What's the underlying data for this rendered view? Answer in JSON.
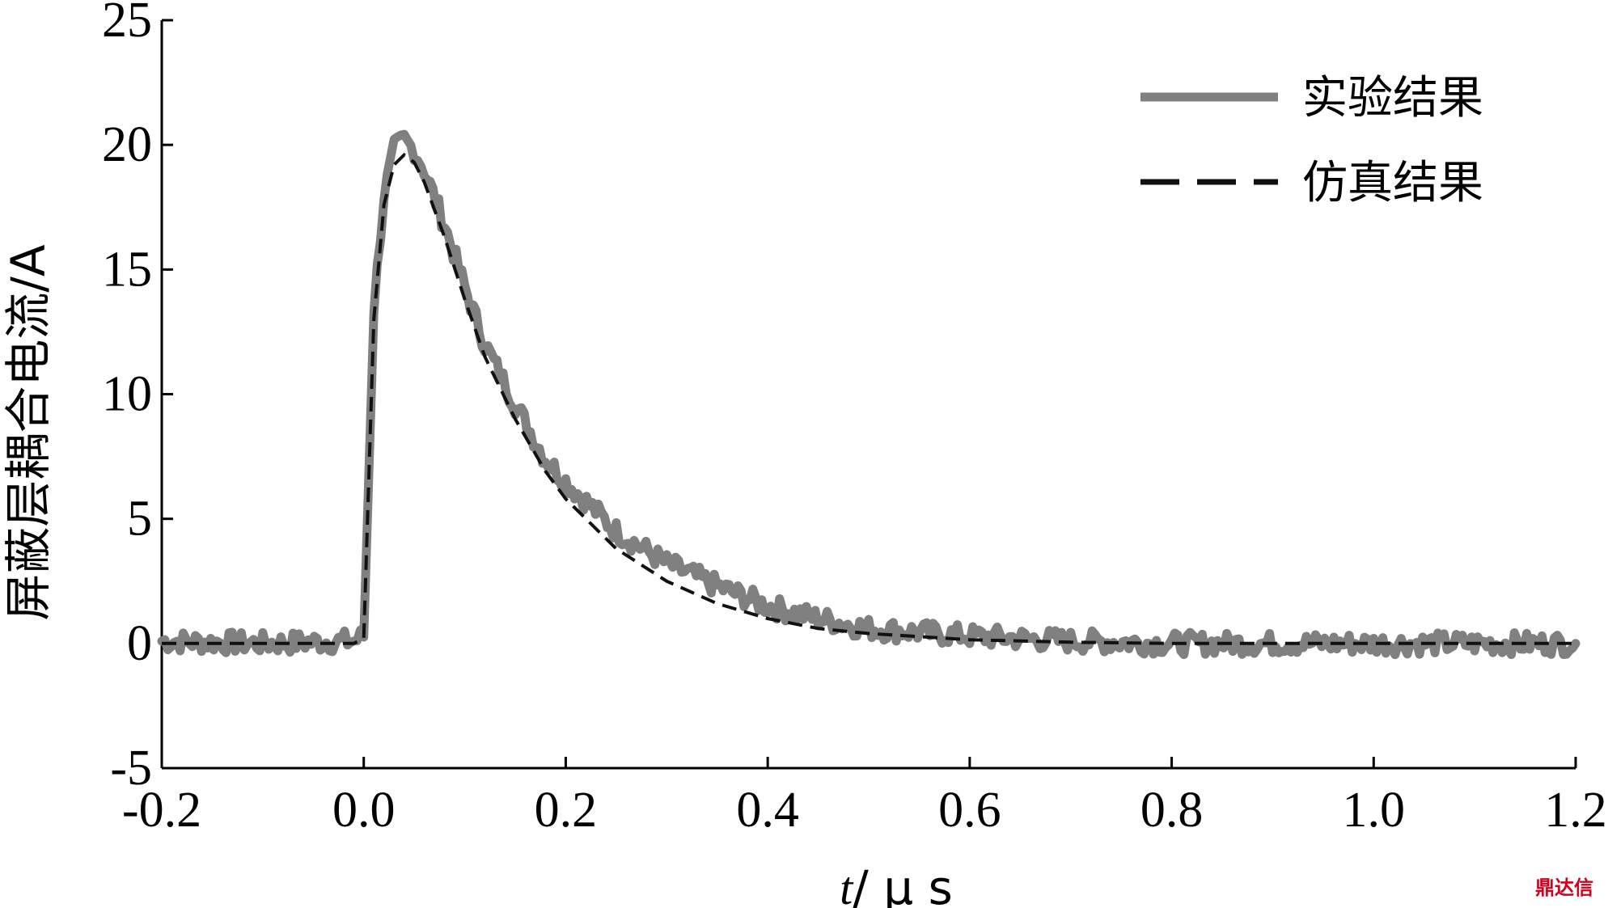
{
  "chart_data": {
    "type": "line",
    "xlabel_italic": "t",
    "xlabel_rest": "/ μ s",
    "ylabel": "屏蔽层耦合电流/A",
    "xlim": [
      -0.2,
      1.2
    ],
    "ylim": [
      -5,
      25
    ],
    "x_ticks": [
      "-0.2",
      "0.0",
      "0.2",
      "0.4",
      "0.6",
      "0.8",
      "1.0",
      "1.2"
    ],
    "y_ticks": [
      "-5",
      "0",
      "5",
      "10",
      "15",
      "20",
      "25"
    ],
    "legend_position": "top-right",
    "series": [
      {
        "name": "实验结果",
        "color": "#808080",
        "style": "solid",
        "x": [
          -0.2,
          -0.1,
          -0.01,
          0.0,
          0.01,
          0.02,
          0.03,
          0.04,
          0.05,
          0.06,
          0.08,
          0.1,
          0.12,
          0.15,
          0.18,
          0.2,
          0.25,
          0.3,
          0.35,
          0.4,
          0.45,
          0.5,
          0.6,
          0.7,
          0.8,
          0.9,
          1.0,
          1.1,
          1.2
        ],
        "y": [
          0.1,
          0.0,
          0.1,
          0.3,
          13.5,
          18.0,
          19.8,
          20.2,
          19.8,
          19.0,
          16.8,
          14.3,
          12.0,
          9.6,
          7.4,
          6.5,
          4.5,
          3.2,
          2.3,
          1.5,
          1.0,
          0.6,
          0.3,
          0.1,
          0.0,
          0.0,
          0.0,
          0.0,
          0.0
        ]
      },
      {
        "name": "仿真结果",
        "color": "#111111",
        "style": "dashed",
        "x": [
          -0.2,
          -0.1,
          -0.01,
          0.0,
          0.01,
          0.02,
          0.03,
          0.04,
          0.05,
          0.06,
          0.08,
          0.1,
          0.12,
          0.15,
          0.18,
          0.2,
          0.25,
          0.3,
          0.35,
          0.4,
          0.45,
          0.5,
          0.6,
          0.7,
          0.8,
          0.9,
          1.0,
          1.1,
          1.2
        ],
        "y": [
          0.0,
          0.0,
          0.0,
          0.2,
          13.0,
          17.6,
          19.2,
          19.6,
          19.3,
          18.5,
          16.3,
          13.8,
          11.5,
          9.0,
          6.9,
          5.8,
          3.8,
          2.5,
          1.6,
          1.0,
          0.6,
          0.4,
          0.15,
          0.05,
          0.0,
          0.0,
          0.0,
          0.0,
          0.0
        ]
      }
    ]
  },
  "watermark": "鼎达信"
}
